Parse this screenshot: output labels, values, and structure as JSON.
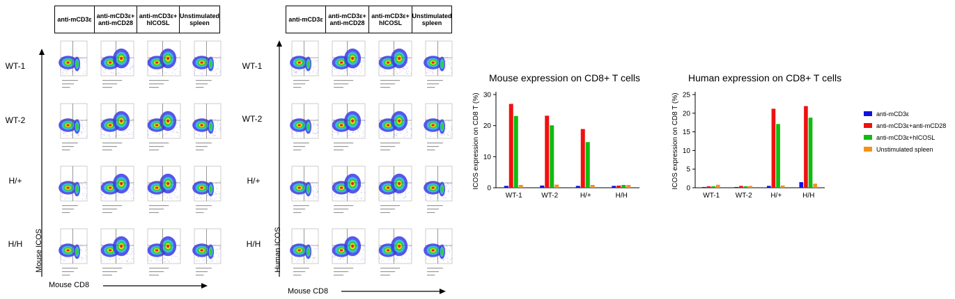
{
  "columns": [
    "anti-mCD3ε",
    "anti-mCD3ε+\nanti-mCD28",
    "anti-mCD3ε+\nhICOSL",
    "Unstimulated\nspleen"
  ],
  "rows": [
    "WT-1",
    "WT-2",
    "H/+",
    "H/H"
  ],
  "flow_panels": [
    {
      "name": "mouse-facs-panel",
      "ylabel": "Mouse ICOS",
      "xlabel": "Mouse CD8"
    },
    {
      "name": "human-facs-panel",
      "ylabel": "Human ICOS",
      "xlabel": "Mouse CD8"
    }
  ],
  "colors": {
    "anti-mCD3e": "#1010e0",
    "anti-mCD28": "#ee1111",
    "hICOSL": "#11bb11",
    "unstim": "#f5901e"
  },
  "legend": [
    "anti-mCD3ε",
    "anti-mCD3ε+anti-mCD28",
    "anti-mCD3ε+hICOSL",
    "Unstimulated spleen"
  ],
  "chart_data": [
    {
      "type": "bar",
      "title": "Mouse expression on CD8+ T cells",
      "xlabel": "",
      "ylabel": "ICOS expression on CD8 T (%)",
      "categories": [
        "WT-1",
        "WT-2",
        "H/+",
        "H/H"
      ],
      "ylim": [
        0,
        30
      ],
      "yticks": [
        0,
        10,
        20,
        30
      ],
      "series": [
        {
          "name": "anti-mCD3ε",
          "values": [
            0.6,
            0.7,
            0.6,
            0.6
          ]
        },
        {
          "name": "anti-mCD3ε+anti-mCD28",
          "values": [
            27.0,
            23.2,
            18.9,
            0.7
          ]
        },
        {
          "name": "anti-mCD3ε+hICOSL",
          "values": [
            23.1,
            20.1,
            14.7,
            0.9
          ]
        },
        {
          "name": "Unstimulated spleen",
          "values": [
            0.9,
            1.0,
            0.9,
            0.9
          ]
        }
      ]
    },
    {
      "type": "bar",
      "title": "Human expression on CD8+ T cells",
      "xlabel": "",
      "ylabel": "ICOS expression on CD8 T (%)",
      "categories": [
        "WT-1",
        "WT-2",
        "H/+",
        "H/H"
      ],
      "ylim": [
        0,
        25
      ],
      "yticks": [
        0,
        5,
        10,
        15,
        20,
        25
      ],
      "legend_position": "right",
      "series": [
        {
          "name": "anti-mCD3ε",
          "values": [
            0.2,
            0.2,
            0.5,
            1.5
          ]
        },
        {
          "name": "anti-mCD3ε+anti-mCD28",
          "values": [
            0.4,
            0.5,
            21.2,
            21.9
          ]
        },
        {
          "name": "anti-mCD3ε+hICOSL",
          "values": [
            0.4,
            0.4,
            17.1,
            18.8
          ]
        },
        {
          "name": "Unstimulated spleen",
          "values": [
            0.8,
            0.5,
            0.6,
            1.1
          ]
        }
      ]
    }
  ]
}
